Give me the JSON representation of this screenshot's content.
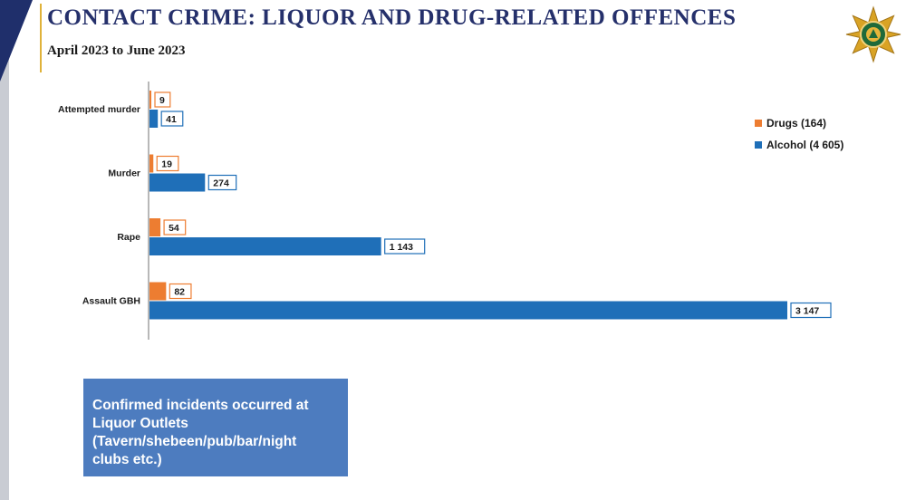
{
  "header": {
    "title": "CONTACT CRIME: LIQUOR AND DRUG-RELATED OFFENCES",
    "subtitle": "April 2023 to June 2023"
  },
  "legend": {
    "drugs_label": "Drugs (164)",
    "alcohol_label": "Alcohol (4 605)"
  },
  "note": {
    "text": "Confirmed incidents occurred at Liquor Outlets (Tavern/shebeen/pub/bar/night clubs etc.)"
  },
  "colors": {
    "drugs": "#ed7d31",
    "alcohol": "#1f6fb8",
    "title": "#25306b",
    "note_background": "#4d7cbf"
  },
  "icons": {
    "logo": "saps-star-emblem"
  },
  "chart_data": {
    "type": "bar",
    "orientation": "horizontal",
    "categories": [
      "Attempted murder",
      "Murder",
      "Rape",
      "Assault GBH"
    ],
    "series": [
      {
        "name": "Drugs (164)",
        "values": [
          9,
          19,
          54,
          82
        ],
        "labels": [
          "9",
          "19",
          "54",
          "82"
        ]
      },
      {
        "name": "Alcohol (4 605)",
        "values": [
          41,
          274,
          1143,
          3147
        ],
        "labels": [
          "41",
          "274",
          "1 143",
          "3 147"
        ]
      }
    ],
    "xlim": [
      0,
      3147
    ],
    "grid": false,
    "legend_position": "right"
  }
}
